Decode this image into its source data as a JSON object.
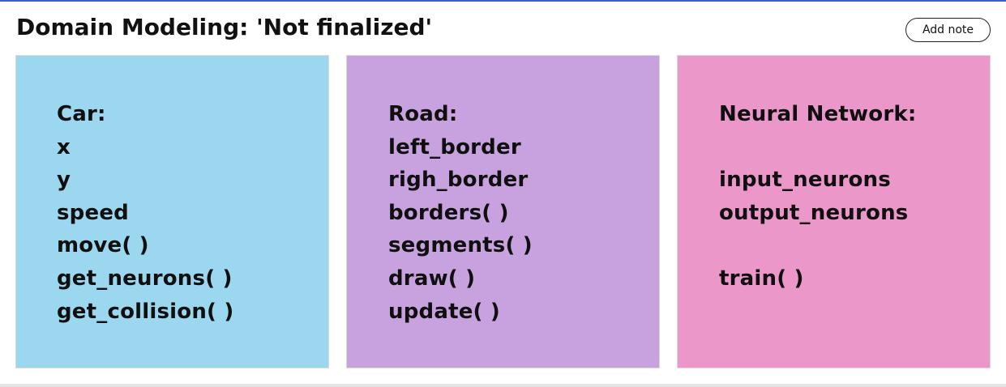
{
  "header": {
    "title": "Domain Modeling: 'Not finalized'",
    "add_note_label": "Add note"
  },
  "colors": {
    "accent": "#3b5bdb",
    "car_card": "#9bd7ef",
    "road_card": "#c8a2de",
    "neural_network_card": "#ec97c9"
  },
  "cards": [
    {
      "lines": [
        "Car:",
        "x",
        "y",
        "speed",
        "move( )",
        "get_neurons( )",
        "get_collision( )"
      ]
    },
    {
      "lines": [
        "Road:",
        "left_border",
        "righ_border",
        "borders( )",
        "segments( )",
        "draw( )",
        "update( )"
      ]
    },
    {
      "lines": [
        "Neural Network:",
        "",
        "input_neurons",
        "output_neurons",
        "",
        "train( )"
      ]
    }
  ]
}
